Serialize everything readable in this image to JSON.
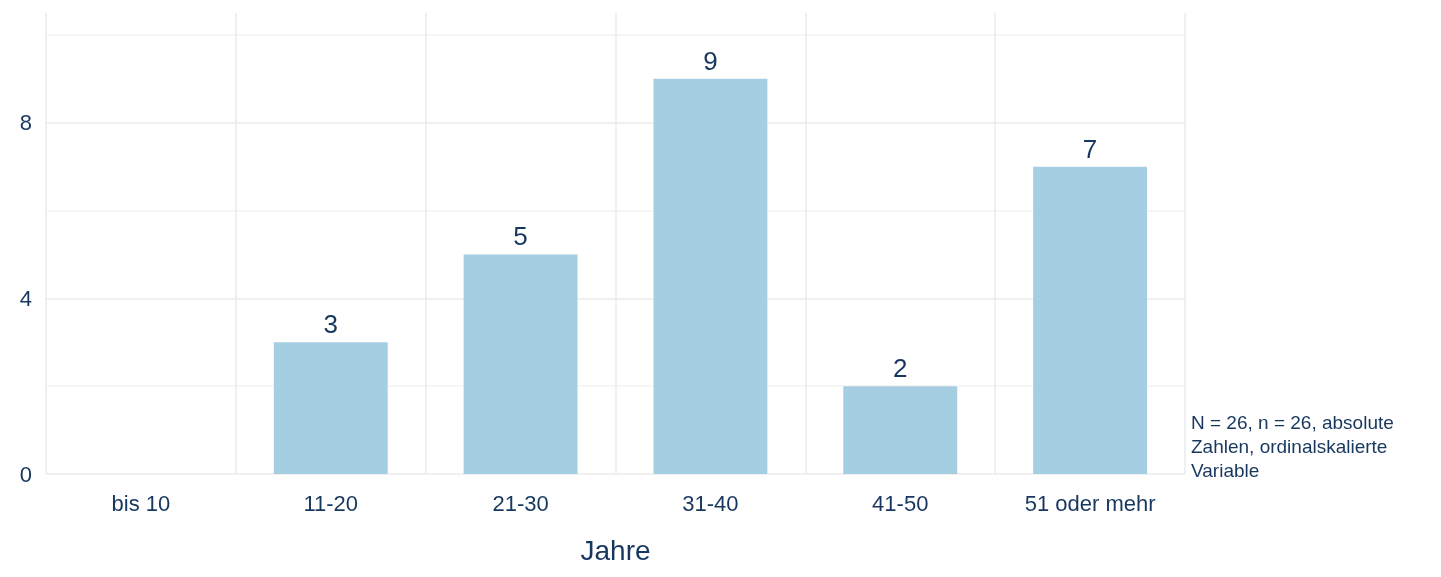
{
  "chart_data": {
    "type": "bar",
    "xlabel": "Jahre",
    "categories": [
      "bis 10",
      "11-20",
      "21-30",
      "31-40",
      "41-50",
      "51 oder mehr"
    ],
    "values": [
      0,
      3,
      5,
      9,
      2,
      7
    ],
    "value_labels": [
      null,
      "3",
      "5",
      "9",
      "2",
      "7"
    ],
    "color": "#a6cee3",
    "ylim": [
      0,
      10.5
    ],
    "yticks": [
      0,
      4,
      8
    ],
    "grid": true,
    "annotations": [
      "N = 26, n = 26, absolute Zahlen, ordinalskalierte Variable"
    ]
  }
}
